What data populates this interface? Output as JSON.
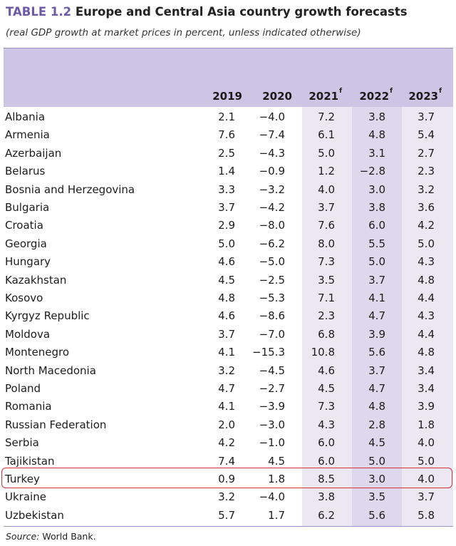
{
  "title": {
    "number": "TABLE 1.2",
    "text": "Europe and Central Asia country growth forecasts"
  },
  "subtitle": "(real GDP growth at market prices in percent, unless indicated otherwise)",
  "columns": [
    {
      "year": "2019",
      "sup": ""
    },
    {
      "year": "2020",
      "sup": ""
    },
    {
      "year": "2021",
      "sup": "f"
    },
    {
      "year": "2022",
      "sup": "f"
    },
    {
      "year": "2023",
      "sup": "f"
    }
  ],
  "rows": [
    {
      "country": "Albania",
      "values": [
        "2.1",
        "−4.0",
        "7.2",
        "3.8",
        "3.7"
      ]
    },
    {
      "country": "Armenia",
      "values": [
        "7.6",
        "−7.4",
        "6.1",
        "4.8",
        "5.4"
      ]
    },
    {
      "country": "Azerbaijan",
      "values": [
        "2.5",
        "−4.3",
        "5.0",
        "3.1",
        "2.7"
      ]
    },
    {
      "country": "Belarus",
      "values": [
        "1.4",
        "−0.9",
        "1.2",
        "−2.8",
        "2.3"
      ]
    },
    {
      "country": "Bosnia and Herzegovina",
      "values": [
        "3.3",
        "−3.2",
        "4.0",
        "3.0",
        "3.2"
      ]
    },
    {
      "country": "Bulgaria",
      "values": [
        "3.7",
        "−4.2",
        "3.7",
        "3.8",
        "3.6"
      ]
    },
    {
      "country": "Croatia",
      "values": [
        "2.9",
        "−8.0",
        "7.6",
        "6.0",
        "4.2"
      ]
    },
    {
      "country": "Georgia",
      "values": [
        "5.0",
        "−6.2",
        "8.0",
        "5.5",
        "5.0"
      ]
    },
    {
      "country": "Hungary",
      "values": [
        "4.6",
        "−5.0",
        "7.3",
        "5.0",
        "4.3"
      ]
    },
    {
      "country": "Kazakhstan",
      "values": [
        "4.5",
        "−2.5",
        "3.5",
        "3.7",
        "4.8"
      ]
    },
    {
      "country": "Kosovo",
      "values": [
        "4.8",
        "−5.3",
        "7.1",
        "4.1",
        "4.4"
      ]
    },
    {
      "country": "Kyrgyz Republic",
      "values": [
        "4.6",
        "−8.6",
        "2.3",
        "4.7",
        "4.3"
      ]
    },
    {
      "country": "Moldova",
      "values": [
        "3.7",
        "−7.0",
        "6.8",
        "3.9",
        "4.4"
      ]
    },
    {
      "country": "Montenegro",
      "values": [
        "4.1",
        "−15.3",
        "10.8",
        "5.6",
        "4.8"
      ]
    },
    {
      "country": "North Macedonia",
      "values": [
        "3.2",
        "−4.5",
        "4.6",
        "3.7",
        "3.4"
      ]
    },
    {
      "country": "Poland",
      "values": [
        "4.7",
        "−2.7",
        "4.5",
        "4.7",
        "3.4"
      ]
    },
    {
      "country": "Romania",
      "values": [
        "4.1",
        "−3.9",
        "7.3",
        "4.8",
        "3.9"
      ]
    },
    {
      "country": "Russian Federation",
      "values": [
        "2.0",
        "−3.0",
        "4.3",
        "2.8",
        "1.8"
      ]
    },
    {
      "country": "Serbia",
      "values": [
        "4.2",
        "−1.0",
        "6.0",
        "4.5",
        "4.0"
      ]
    },
    {
      "country": "Tajikistan",
      "values": [
        "7.4",
        "4.5",
        "6.0",
        "5.0",
        "5.0"
      ]
    },
    {
      "country": "Turkey",
      "values": [
        "0.9",
        "1.8",
        "8.5",
        "3.0",
        "4.0"
      ],
      "highlighted": true
    },
    {
      "country": "Ukraine",
      "values": [
        "3.2",
        "−4.0",
        "3.8",
        "3.5",
        "3.7"
      ]
    },
    {
      "country": "Uzbekistan",
      "values": [
        "5.7",
        "1.7",
        "6.2",
        "5.6",
        "5.8"
      ]
    }
  ],
  "source": {
    "label": "Source:",
    "text": " World Bank."
  },
  "colors": {
    "accent": "#6b5aa8",
    "header_band": "#ccc5e4",
    "forecast_light": "#ebe8f4",
    "forecast_dark": "#ddd8ec",
    "highlight_border": "#d6303a"
  }
}
